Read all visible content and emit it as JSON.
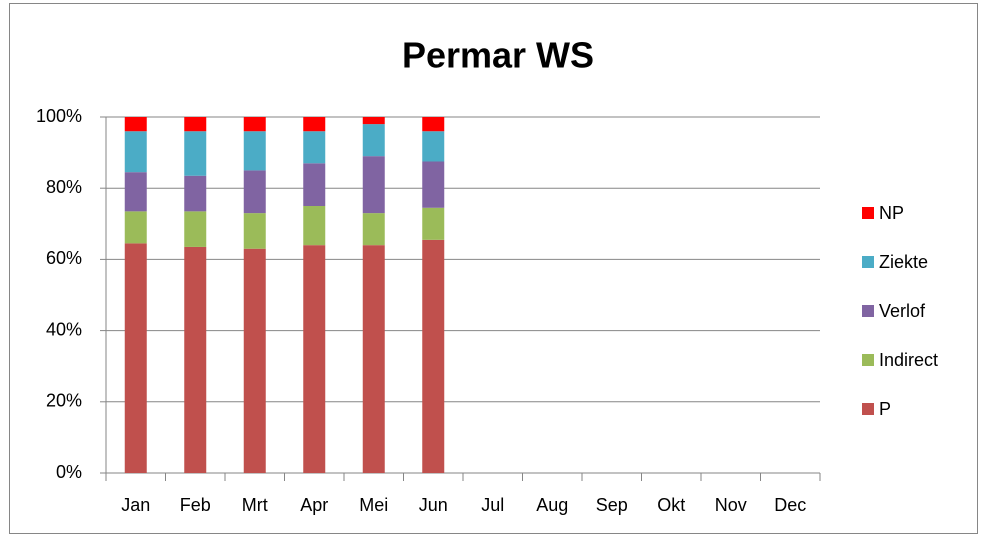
{
  "chart_data": {
    "type": "stacked_bar",
    "title": "Permar WS",
    "categories": [
      "Jan",
      "Feb",
      "Mrt",
      "Apr",
      "Mei",
      "Jun",
      "Jul",
      "Aug",
      "Sep",
      "Okt",
      "Nov",
      "Dec"
    ],
    "series": [
      {
        "name": "P",
        "color": "#c0504d",
        "values": [
          64.5,
          63.5,
          63,
          64,
          64,
          65.5,
          null,
          null,
          null,
          null,
          null,
          null
        ]
      },
      {
        "name": "Indirect",
        "color": "#9bbb59",
        "values": [
          9,
          10,
          10,
          11,
          9,
          9,
          null,
          null,
          null,
          null,
          null,
          null
        ]
      },
      {
        "name": "Verlof",
        "color": "#8064a2",
        "values": [
          11,
          10,
          12,
          12,
          16,
          13,
          null,
          null,
          null,
          null,
          null,
          null
        ]
      },
      {
        "name": "Ziekte",
        "color": "#4bacc6",
        "values": [
          11.5,
          12.5,
          11,
          9,
          9,
          8.5,
          null,
          null,
          null,
          null,
          null,
          null
        ]
      },
      {
        "name": "NP",
        "color": "#ff0000",
        "values": [
          4,
          4,
          4,
          4,
          2,
          4,
          null,
          null,
          null,
          null,
          null,
          null
        ]
      }
    ],
    "ylim": [
      0,
      100
    ],
    "yticks": [
      {
        "value": 0,
        "label": "0%"
      },
      {
        "value": 20,
        "label": "20%"
      },
      {
        "value": 40,
        "label": "40%"
      },
      {
        "value": 60,
        "label": "60%"
      },
      {
        "value": 80,
        "label": "80%"
      },
      {
        "value": 100,
        "label": "100%"
      }
    ],
    "grid": true,
    "legend": "right"
  }
}
